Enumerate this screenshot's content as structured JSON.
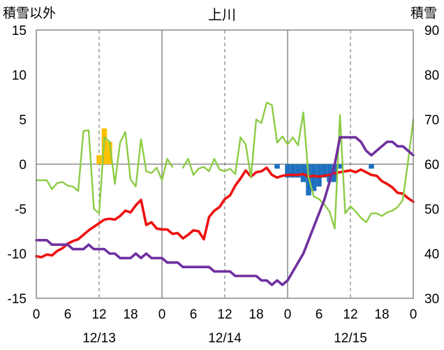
{
  "chart_data": {
    "type": "line",
    "title": "上川",
    "left_axis_label": "積雪以外",
    "right_axis_label": "積雪",
    "left_ylim": [
      -15,
      15
    ],
    "left_yticks": [
      -15,
      -10,
      -5,
      0,
      5,
      10,
      15
    ],
    "right_ylim": [
      30,
      90
    ],
    "right_yticks": [
      30,
      40,
      50,
      60,
      70,
      80,
      90
    ],
    "xlim": [
      0,
      72
    ],
    "xtick_hours": [
      0,
      6,
      12,
      18,
      24,
      30,
      36,
      42,
      48,
      54,
      60,
      66,
      72
    ],
    "xtick_labels": [
      "0",
      "6",
      "12",
      "18",
      "0",
      "6",
      "12",
      "18",
      "0",
      "6",
      "12",
      "18",
      "0"
    ],
    "date_labels": [
      {
        "text": "12/13",
        "hour": 12
      },
      {
        "text": "12/14",
        "hour": 36
      },
      {
        "text": "12/15",
        "hour": 60
      }
    ],
    "grid": {
      "solid_vertical_hours": [
        24,
        48
      ],
      "dashed_vertical_hours": [
        12,
        36,
        60
      ]
    },
    "colors": {
      "temperature": "#ee1111",
      "wind": "#8ccc44",
      "snow_depth": "#7030a0",
      "snowfall": "#ffc000",
      "snow_change": "#1e6fbf",
      "grid": "#777777"
    },
    "series": [
      {
        "key": "temperature",
        "axis": "left",
        "style": "line",
        "values": [
          [
            0,
            -10.3
          ],
          [
            1,
            -10.4
          ],
          [
            2,
            -10.1
          ],
          [
            3,
            -10.2
          ],
          [
            4,
            -9.7
          ],
          [
            5,
            -9.4
          ],
          [
            6,
            -8.9
          ],
          [
            7,
            -8.6
          ],
          [
            8,
            -8.4
          ],
          [
            9,
            -7.9
          ],
          [
            10,
            -7.4
          ],
          [
            11,
            -7
          ],
          [
            12,
            -6.6
          ],
          [
            13,
            -6.2
          ],
          [
            14,
            -6.1
          ],
          [
            15,
            -6.2
          ],
          [
            16,
            -5.8
          ],
          [
            17,
            -5.2
          ],
          [
            18,
            -5.4
          ],
          [
            19,
            -4.6
          ],
          [
            20,
            -4
          ],
          [
            21,
            -6.8
          ],
          [
            22,
            -6.5
          ],
          [
            23,
            -7.2
          ],
          [
            24,
            -7.3
          ],
          [
            25,
            -7.3
          ],
          [
            26,
            -7.8
          ],
          [
            27,
            -7.7
          ],
          [
            28,
            -8.3
          ],
          [
            29,
            -7.9
          ],
          [
            30,
            -7.4
          ],
          [
            31,
            -7.5
          ],
          [
            32,
            -8.4
          ],
          [
            33,
            -5.9
          ],
          [
            34,
            -5.2
          ],
          [
            35,
            -4.8
          ],
          [
            36,
            -3.9
          ],
          [
            37,
            -3.5
          ],
          [
            38,
            -2.4
          ],
          [
            39,
            -1.6
          ],
          [
            40,
            -0.7
          ],
          [
            41,
            -1.4
          ],
          [
            42,
            -0.9
          ],
          [
            43,
            -0.8
          ],
          [
            44,
            -0.4
          ],
          [
            45,
            -1.2
          ],
          [
            46,
            -1.5
          ],
          [
            47,
            -1.3
          ],
          [
            48,
            -1.2
          ],
          [
            49,
            -1.2
          ],
          [
            50,
            -1.2
          ],
          [
            51,
            -1.1
          ],
          [
            52,
            -1.4
          ],
          [
            53,
            -1.3
          ],
          [
            54,
            -1.4
          ],
          [
            55,
            -1.3
          ],
          [
            56,
            -1.2
          ],
          [
            57,
            -1
          ],
          [
            58,
            -0.9
          ],
          [
            59,
            -0.8
          ],
          [
            60,
            -0.7
          ],
          [
            61,
            -0.9
          ],
          [
            62,
            -0.6
          ],
          [
            63,
            -0.9
          ],
          [
            64,
            -1.2
          ],
          [
            65,
            -1.3
          ],
          [
            66,
            -1.9
          ],
          [
            67,
            -2.2
          ],
          [
            68,
            -2.6
          ],
          [
            69,
            -3.2
          ],
          [
            70,
            -3.3
          ],
          [
            71,
            -3.8
          ],
          [
            72,
            -4.2
          ]
        ]
      },
      {
        "key": "wind",
        "axis": "left",
        "style": "line",
        "values": [
          [
            0,
            -1.8
          ],
          [
            1,
            -1.8
          ],
          [
            2,
            -1.8
          ],
          [
            3,
            -2.8
          ],
          [
            4,
            -2.1
          ],
          [
            5,
            -2
          ],
          [
            6,
            -2.4
          ],
          [
            7,
            -2.5
          ],
          [
            8,
            -3
          ],
          [
            9,
            3.7
          ],
          [
            10,
            3.8
          ],
          [
            11,
            -5
          ],
          [
            12,
            -5.5
          ],
          [
            13,
            3
          ],
          [
            14,
            2.5
          ],
          [
            15,
            -2.2
          ],
          [
            16,
            2.4
          ],
          [
            17,
            3.6
          ],
          [
            18,
            -1.7
          ],
          [
            19,
            -2.5
          ],
          [
            20,
            2.8
          ],
          [
            21,
            -0.8
          ],
          [
            22,
            -1
          ],
          [
            23,
            -0.4
          ],
          [
            24,
            -1.8
          ],
          [
            25,
            0.6
          ],
          [
            26,
            -0.3
          ],
          [
            27,
            null
          ],
          [
            28,
            -0.4
          ],
          [
            29,
            0.6
          ],
          [
            30,
            -1.2
          ],
          [
            31,
            -0.5
          ],
          [
            32,
            -0.3
          ],
          [
            33,
            -0.8
          ],
          [
            34,
            0.6
          ],
          [
            35,
            -0.6
          ],
          [
            36,
            -0.8
          ],
          [
            37,
            -0.5
          ],
          [
            38,
            -1.1
          ],
          [
            39,
            3
          ],
          [
            40,
            2.2
          ],
          [
            41,
            -1.5
          ],
          [
            42,
            5
          ],
          [
            43,
            4.6
          ],
          [
            44,
            6.9
          ],
          [
            45,
            6.6
          ],
          [
            46,
            2.4
          ],
          [
            47,
            3.1
          ],
          [
            48,
            2.2
          ],
          [
            49,
            3
          ],
          [
            50,
            2.1
          ],
          [
            51,
            5.8
          ],
          [
            52,
            -1.5
          ],
          [
            53,
            -3.6
          ],
          [
            54,
            -3.9
          ],
          [
            55,
            -4.5
          ],
          [
            56,
            -5.3
          ],
          [
            57,
            -7.2
          ],
          [
            58,
            5.5
          ],
          [
            59,
            -5.5
          ],
          [
            60,
            -4.7
          ],
          [
            61,
            -5.3
          ],
          [
            62,
            -6
          ],
          [
            63,
            -6.5
          ],
          [
            64,
            -5.5
          ],
          [
            65,
            -5.5
          ],
          [
            66,
            -5.8
          ],
          [
            67,
            -5.4
          ],
          [
            68,
            -5.2
          ],
          [
            69,
            -4.8
          ],
          [
            70,
            -4
          ],
          [
            71,
            0.3
          ],
          [
            72,
            5
          ]
        ]
      },
      {
        "key": "snow_depth",
        "axis": "right",
        "style": "line",
        "values": [
          [
            0,
            43
          ],
          [
            2,
            43
          ],
          [
            3,
            42
          ],
          [
            5,
            42
          ],
          [
            6,
            42
          ],
          [
            7,
            41
          ],
          [
            9,
            41
          ],
          [
            10,
            42
          ],
          [
            11,
            41
          ],
          [
            13,
            41
          ],
          [
            14,
            40
          ],
          [
            15,
            40
          ],
          [
            16,
            39
          ],
          [
            18,
            39
          ],
          [
            19,
            40
          ],
          [
            20,
            39
          ],
          [
            21,
            40
          ],
          [
            22,
            39
          ],
          [
            24,
            39
          ],
          [
            25,
            38
          ],
          [
            27,
            38
          ],
          [
            28,
            37
          ],
          [
            33,
            37
          ],
          [
            34,
            36
          ],
          [
            37,
            36
          ],
          [
            38,
            35
          ],
          [
            42,
            35
          ],
          [
            43,
            34
          ],
          [
            44,
            34
          ],
          [
            45,
            33
          ],
          [
            46,
            34
          ],
          [
            47,
            33
          ],
          [
            48,
            34
          ],
          [
            49,
            36
          ],
          [
            50,
            38
          ],
          [
            51,
            40
          ],
          [
            52,
            43
          ],
          [
            53,
            46
          ],
          [
            54,
            49
          ],
          [
            55,
            52
          ],
          [
            56,
            56
          ],
          [
            57,
            60
          ],
          [
            58,
            66
          ],
          [
            59,
            66
          ],
          [
            60,
            66
          ],
          [
            61,
            66
          ],
          [
            62,
            65
          ],
          [
            63,
            63
          ],
          [
            64,
            62
          ],
          [
            65,
            63
          ],
          [
            66,
            64
          ],
          [
            67,
            65
          ],
          [
            68,
            65
          ],
          [
            69,
            64
          ],
          [
            70,
            64
          ],
          [
            71,
            63
          ],
          [
            72,
            62
          ]
        ]
      },
      {
        "key": "snowfall",
        "axis": "right",
        "style": "bar",
        "values": [
          [
            12,
            2
          ],
          [
            13,
            8
          ],
          [
            14,
            5
          ]
        ]
      },
      {
        "key": "snow_change",
        "axis": "right",
        "style": "bar",
        "values": [
          [
            46,
            -1
          ],
          [
            48,
            -3
          ],
          [
            49,
            -3
          ],
          [
            50,
            -3
          ],
          [
            51,
            -4
          ],
          [
            52,
            -7
          ],
          [
            53,
            -6
          ],
          [
            54,
            -5
          ],
          [
            55,
            -3
          ],
          [
            56,
            -4
          ],
          [
            57,
            -4
          ],
          [
            58,
            -1
          ],
          [
            64,
            -1
          ]
        ]
      }
    ]
  }
}
